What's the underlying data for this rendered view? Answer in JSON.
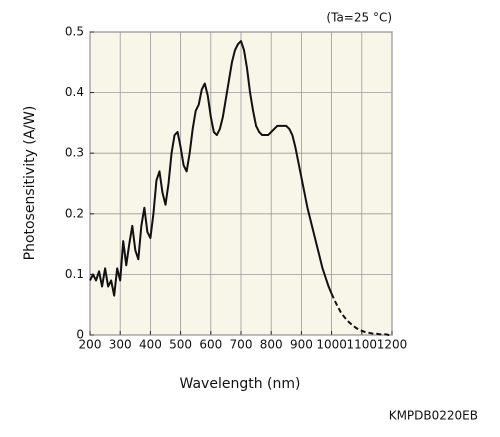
{
  "chart_data": {
    "type": "line",
    "xlabel": "Wavelength (nm)",
    "ylabel": "Photosensitivity (A/W)",
    "annotations": [
      "(Ta=25 °C)",
      "KMPDB0220EB"
    ],
    "x": [
      200,
      210,
      220,
      230,
      240,
      250,
      260,
      270,
      280,
      290,
      300,
      310,
      320,
      330,
      340,
      350,
      360,
      370,
      380,
      390,
      400,
      410,
      420,
      430,
      440,
      450,
      460,
      470,
      480,
      490,
      500,
      510,
      520,
      530,
      540,
      550,
      560,
      570,
      580,
      590,
      600,
      610,
      620,
      630,
      640,
      650,
      660,
      670,
      680,
      690,
      700,
      710,
      720,
      730,
      740,
      750,
      760,
      770,
      780,
      790,
      800,
      810,
      820,
      830,
      840,
      850,
      860,
      870,
      880,
      890,
      900,
      910,
      920,
      930,
      940,
      950,
      960,
      970,
      980,
      990,
      1000,
      1010,
      1020,
      1030,
      1040,
      1050,
      1060,
      1070,
      1080,
      1090,
      1100,
      1110,
      1120,
      1130,
      1140,
      1150,
      1160,
      1170,
      1180,
      1190,
      1200
    ],
    "series": [
      {
        "color": "#111111",
        "line_style": "solid",
        "values": [
          0.09,
          0.1,
          0.09,
          0.105,
          0.08,
          0.11,
          0.08,
          0.09,
          0.065,
          0.11,
          0.09,
          0.155,
          0.115,
          0.15,
          0.18,
          0.14,
          0.125,
          0.18,
          0.21,
          0.17,
          0.16,
          0.2,
          0.255,
          0.27,
          0.235,
          0.215,
          0.25,
          0.3,
          0.33,
          0.335,
          0.31,
          0.28,
          0.27,
          0.3,
          0.34,
          0.37,
          0.38,
          0.405,
          0.415,
          0.395,
          0.36,
          0.335,
          0.33,
          0.34,
          0.36,
          0.39,
          0.42,
          0.45,
          0.47,
          0.48,
          0.485,
          0.47,
          0.44,
          0.4,
          0.37,
          0.345,
          0.335,
          0.33,
          0.33,
          0.33,
          0.335,
          0.34,
          0.345,
          0.345,
          0.345,
          0.345,
          0.34,
          0.33,
          0.31,
          0.285,
          0.26,
          0.235,
          0.21,
          0.19,
          0.17,
          0.15,
          0.13,
          0.11,
          0.095,
          0.08,
          0.068,
          null,
          null,
          null,
          null,
          null,
          null,
          null,
          null,
          null,
          null,
          null,
          null,
          null,
          null,
          null,
          null,
          null,
          null,
          null,
          null
        ]
      },
      {
        "color": "#111111",
        "line_style": "dashed",
        "values": [
          null,
          null,
          null,
          null,
          null,
          null,
          null,
          null,
          null,
          null,
          null,
          null,
          null,
          null,
          null,
          null,
          null,
          null,
          null,
          null,
          null,
          null,
          null,
          null,
          null,
          null,
          null,
          null,
          null,
          null,
          null,
          null,
          null,
          null,
          null,
          null,
          null,
          null,
          null,
          null,
          null,
          null,
          null,
          null,
          null,
          null,
          null,
          null,
          null,
          null,
          null,
          null,
          null,
          null,
          null,
          null,
          null,
          null,
          null,
          null,
          null,
          null,
          null,
          null,
          null,
          null,
          null,
          null,
          null,
          null,
          null,
          null,
          null,
          null,
          null,
          null,
          null,
          null,
          null,
          null,
          0.068,
          0.057,
          0.047,
          0.038,
          0.031,
          0.025,
          0.02,
          0.016,
          0.012,
          0.009,
          0.007,
          0.005,
          0.004,
          0.003,
          0.002,
          0.002,
          0.001,
          0.001,
          0.001,
          0,
          0
        ]
      }
    ],
    "xlim": [
      200,
      1200
    ],
    "ylim": [
      0,
      0.5
    ],
    "xticks": [
      200,
      300,
      400,
      500,
      600,
      700,
      800,
      900,
      1000,
      1100,
      1200
    ],
    "yticks": [
      0,
      0.1,
      0.2,
      0.3,
      0.4,
      0.5
    ],
    "grid": true,
    "background": "#f8f6e8"
  }
}
